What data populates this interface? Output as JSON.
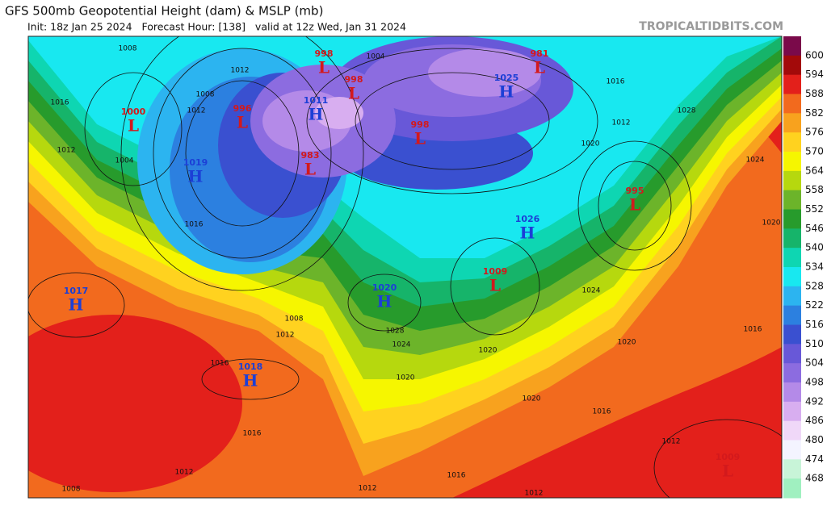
{
  "header": {
    "title": "GFS 500mb Geopotential Height (dam) & MSLP (mb)",
    "subtitle": "Init: 18z Jan 25 2024   Forecast Hour: [138]   valid at 12z Wed, Jan 31 2024",
    "watermark": "TROPICALTIDBITS.COM"
  },
  "legend": {
    "levels": [
      600,
      594,
      588,
      582,
      576,
      570,
      564,
      558,
      552,
      546,
      540,
      534,
      528,
      522,
      516,
      510,
      504,
      498,
      492,
      486,
      480,
      474,
      468
    ],
    "colors": [
      "#7a0a4a",
      "#a30a0a",
      "#e3201b",
      "#f26a1e",
      "#f8a21e",
      "#ffd21f",
      "#f6f600",
      "#b6d80e",
      "#6cb42a",
      "#279b2c",
      "#16b46a",
      "#0ed6b2",
      "#18e8f0",
      "#2cb4f0",
      "#2c80e0",
      "#3a50d0",
      "#6858d8",
      "#8c6ce0",
      "#b48ae8",
      "#d8aef0",
      "#f0d8f8",
      "#f4f4ff",
      "#c8f4d8",
      "#a0f0c0"
    ]
  },
  "center_colors": {
    "H": "#1c3fd6",
    "L": "#d3191c"
  },
  "centers": [
    {
      "letter": "L",
      "value": 998
    },
    {
      "letter": "L",
      "value": 998
    },
    {
      "letter": "L",
      "value": 981
    },
    {
      "letter": "H",
      "value": 1025
    },
    {
      "letter": "H",
      "value": 1011
    },
    {
      "letter": "L",
      "value": 996
    },
    {
      "letter": "L",
      "value": 1000
    },
    {
      "letter": "L",
      "value": 998
    },
    {
      "letter": "L",
      "value": 983
    },
    {
      "letter": "H",
      "value": 1019
    },
    {
      "letter": "L",
      "value": 995
    },
    {
      "letter": "H",
      "value": 1026
    },
    {
      "letter": "L",
      "value": 1009
    },
    {
      "letter": "H",
      "value": 1017
    },
    {
      "letter": "H",
      "value": 1020
    },
    {
      "letter": "H",
      "value": 1018
    },
    {
      "letter": "L",
      "value": 1009
    }
  ],
  "isobar_labels": [
    1008,
    1012,
    1004,
    1016,
    1012,
    1008,
    1016,
    1028,
    1024,
    1020,
    1016,
    1004,
    1012,
    1020,
    1012,
    1024,
    1016,
    1020,
    1016,
    1016,
    1020,
    1020,
    1024,
    1028,
    1012,
    1008,
    1016,
    1012,
    1008,
    1012,
    1016,
    1012,
    1020,
    1012
  ]
}
